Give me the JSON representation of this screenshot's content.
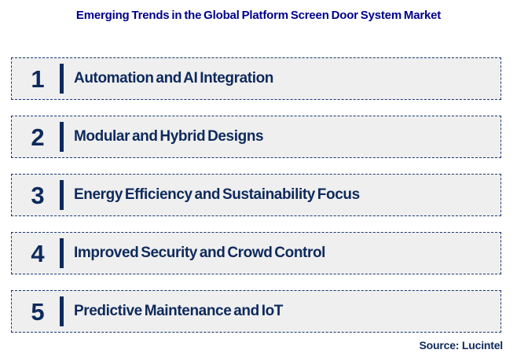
{
  "title": "Emerging Trends in the Global Platform Screen Door System Market",
  "items": [
    {
      "number": "1",
      "label": "Automation and AI Integration"
    },
    {
      "number": "2",
      "label": "Modular and Hybrid Designs"
    },
    {
      "number": "3",
      "label": "Energy Efficiency and Sustainability Focus"
    },
    {
      "number": "4",
      "label": "Improved Security and Crowd Control"
    },
    {
      "number": "5",
      "label": "Predictive Maintenance and IoT"
    }
  ],
  "source": "Source: Lucintel",
  "colors": {
    "title_text": "#00008B",
    "item_text": "#0e2a5c",
    "row_background": "#efefef",
    "row_border": "#16386e"
  }
}
